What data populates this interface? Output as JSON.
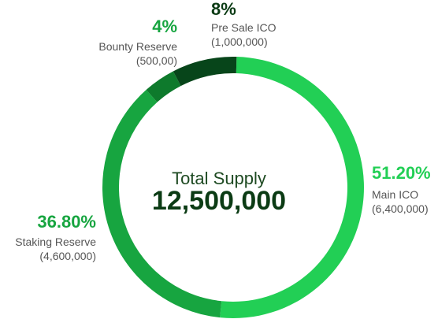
{
  "center": {
    "title": "Total Supply",
    "value": "12,500,000"
  },
  "chart_data": {
    "type": "pie",
    "style": "donut",
    "slices": [
      {
        "name": "Main ICO",
        "percent_label": "51.20%",
        "amount_label": "(6,400,000)",
        "value": 51.2,
        "color": "#22cf55",
        "label_color": "#22cf55"
      },
      {
        "name": "Staking Reserve",
        "percent_label": "36.80%",
        "amount_label": "(4,600,000)",
        "value": 36.8,
        "color": "#17a540",
        "label_color": "#17a540"
      },
      {
        "name": "Bounty Reserve",
        "percent_label": "4%",
        "amount_label": "(500,00)",
        "value": 4,
        "color": "#0e7a2c",
        "label_color": "#17a540"
      },
      {
        "name": "Pre Sale ICO",
        "percent_label": "8%",
        "amount_label": "(1,000,000)",
        "value": 8,
        "color": "#07451a",
        "label_color": "#0b3b14"
      }
    ]
  }
}
